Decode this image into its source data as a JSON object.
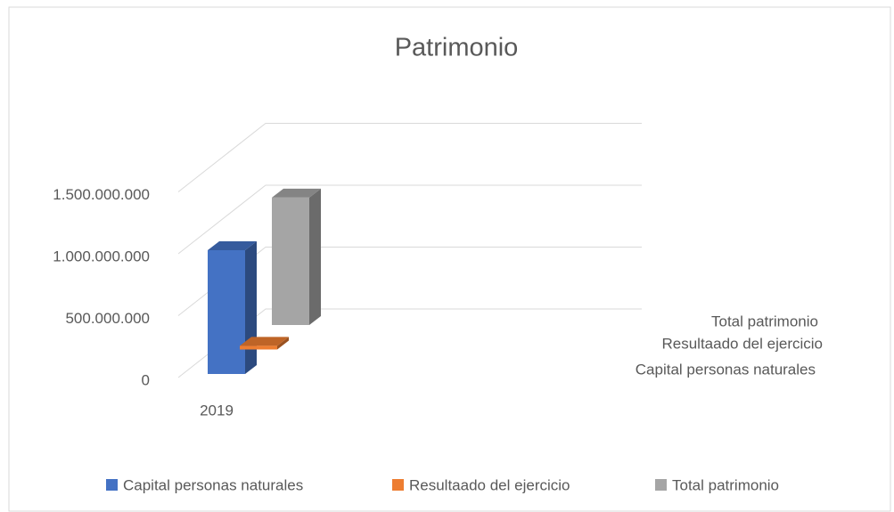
{
  "chart_data": {
    "type": "bar3d",
    "title": "Patrimonio",
    "categories": [
      "2019"
    ],
    "series": [
      {
        "name": "Capital personas naturales",
        "color": "#4472c4",
        "values": [
          1000000000
        ]
      },
      {
        "name": "Resultaado del ejercicio",
        "color": "#ed7d31",
        "values": [
          30000000
        ]
      },
      {
        "name": "Total patrimonio",
        "color": "#a5a5a5",
        "values": [
          1030000000
        ]
      }
    ],
    "ylim": [
      0,
      1500000000
    ],
    "yticks": [
      0,
      {
        "value": 500000000,
        "label": "500.000.000"
      },
      {
        "value": 1000000000,
        "label": "1.000.000.000"
      },
      {
        "value": 1500000000,
        "label": "1.500.000.000"
      }
    ],
    "grid": true,
    "legend": "bottom"
  }
}
